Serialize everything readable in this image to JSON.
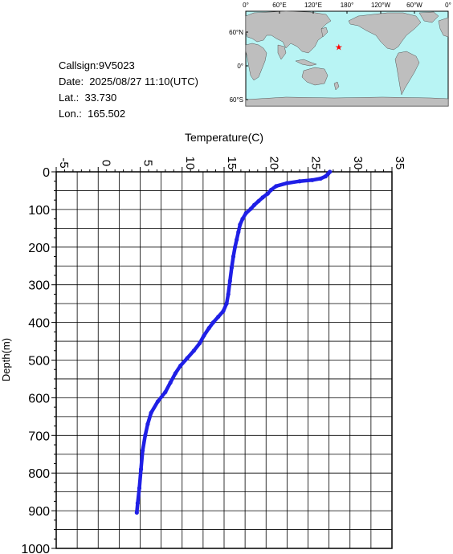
{
  "info": {
    "callsign": "Callsign:9V5023",
    "date": "Date:  2025/08/27 11:10(UTC)",
    "lat": "Lat.:  33.730",
    "lon": "Lon.:  165.502"
  },
  "map": {
    "lon_labels": [
      "0°",
      "60°E",
      "120°E",
      "180°",
      "120°W",
      "60°W",
      "0°"
    ],
    "lat_labels": [
      "60°N",
      "0°",
      "60°S"
    ],
    "ocean_color": "#b8f4f4",
    "land_color": "#bebebe",
    "marker": {
      "lat": 33.73,
      "lon": 165.502,
      "color": "#ff0000",
      "symbol": "★"
    }
  },
  "chart_data": {
    "type": "line",
    "xlabel": "Temperature(C)",
    "ylabel": "Depth(m)",
    "xlim": [
      -5,
      35
    ],
    "ylim": [
      1000,
      0
    ],
    "x_ticks": [
      "-5",
      "0",
      "5",
      "10",
      "15",
      "20",
      "25",
      "30",
      "35"
    ],
    "y_ticks": [
      "0",
      "100",
      "200",
      "300",
      "400",
      "500",
      "600",
      "700",
      "800",
      "900",
      "1000"
    ],
    "grid": true,
    "series": [
      {
        "color": "#1f1fe6",
        "points": [
          [
            27.6,
            0
          ],
          [
            27.4,
            5
          ],
          [
            27.1,
            12
          ],
          [
            26.5,
            18
          ],
          [
            25.5,
            22
          ],
          [
            24.0,
            25
          ],
          [
            22.5,
            30
          ],
          [
            21.2,
            38
          ],
          [
            20.6,
            48
          ],
          [
            20.2,
            58
          ],
          [
            19.6,
            68
          ],
          [
            19.1,
            78
          ],
          [
            18.6,
            88
          ],
          [
            18.2,
            98
          ],
          [
            17.6,
            110
          ],
          [
            17.2,
            125
          ],
          [
            16.9,
            140
          ],
          [
            16.7,
            160
          ],
          [
            16.5,
            180
          ],
          [
            16.3,
            200
          ],
          [
            16.1,
            225
          ],
          [
            15.9,
            255
          ],
          [
            15.7,
            290
          ],
          [
            15.5,
            325
          ],
          [
            15.3,
            350
          ],
          [
            14.9,
            370
          ],
          [
            14.3,
            385
          ],
          [
            13.7,
            400
          ],
          [
            13.2,
            415
          ],
          [
            12.6,
            435
          ],
          [
            12.1,
            455
          ],
          [
            11.4,
            475
          ],
          [
            10.6,
            495
          ],
          [
            9.8,
            515
          ],
          [
            9.2,
            535
          ],
          [
            8.6,
            560
          ],
          [
            8.0,
            585
          ],
          [
            7.1,
            610
          ],
          [
            6.3,
            640
          ],
          [
            5.9,
            670
          ],
          [
            5.6,
            700
          ],
          [
            5.3,
            740
          ],
          [
            5.1,
            790
          ],
          [
            4.9,
            840
          ],
          [
            4.7,
            880
          ],
          [
            4.6,
            905
          ]
        ]
      }
    ]
  }
}
